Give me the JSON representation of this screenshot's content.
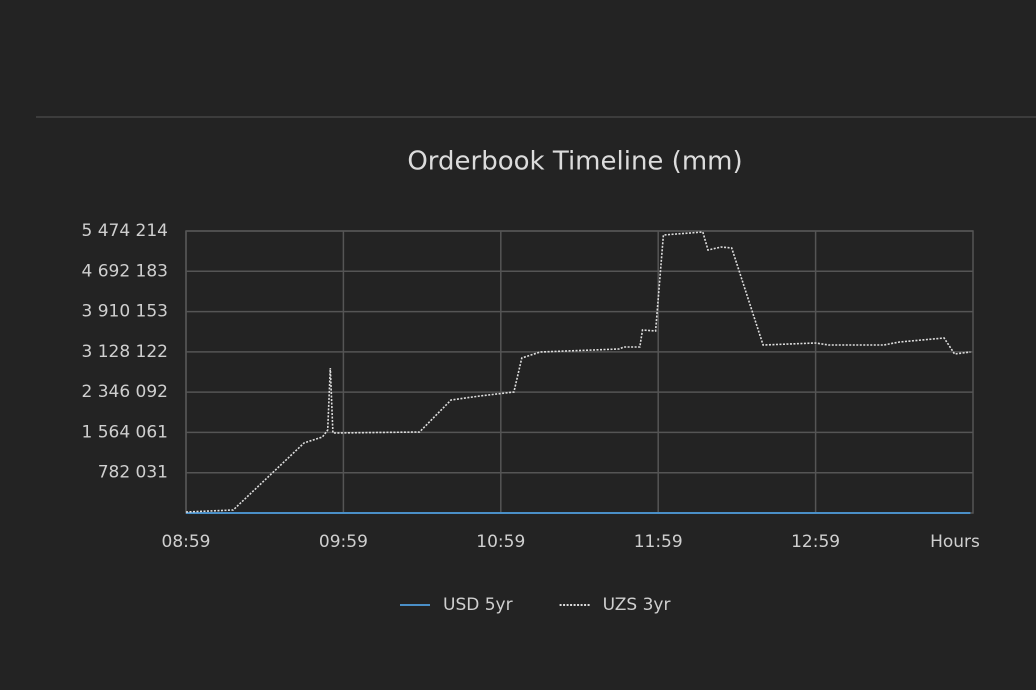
{
  "chart_data": {
    "type": "line",
    "title": "Orderbook Timeline (mm)",
    "x_label": "Hours",
    "x": [
      "08:59",
      "09:17",
      "09:44",
      "09:51",
      "09:53",
      "09:54",
      "09:55",
      "10:28",
      "10:40",
      "10:51",
      "11:04",
      "11:07",
      "11:14",
      "11:44",
      "11:46",
      "11:52",
      "11:53",
      "11:58",
      "12:01",
      "12:16",
      "12:18",
      "12:23",
      "12:27",
      "12:39",
      "12:59",
      "13:04",
      "13:25",
      "13:31",
      "13:48",
      "13:52",
      "13:58"
    ],
    "xlim": [
      "08:59",
      "13:59"
    ],
    "xticks": [
      "08:59",
      "09:59",
      "10:59",
      "11:59",
      "12:59"
    ],
    "ylim": [
      0,
      5474214
    ],
    "yticks": [
      {
        "value": 782031,
        "label": "782 031"
      },
      {
        "value": 1564061,
        "label": "1 564 061"
      },
      {
        "value": 2346092,
        "label": "2 346 092"
      },
      {
        "value": 3128122,
        "label": "3 128 122"
      },
      {
        "value": 3910153,
        "label": "3 910 153"
      },
      {
        "value": 4692183,
        "label": "4 692 183"
      },
      {
        "value": 5474214,
        "label": "5 474 214"
      }
    ],
    "grid": true,
    "series": [
      {
        "name": "USD 5yr",
        "color": "#4a8fc7",
        "style": "solid",
        "values": [
          0,
          0,
          0,
          0,
          0,
          0,
          0,
          0,
          0,
          0,
          0,
          0,
          0,
          0,
          0,
          0,
          0,
          0,
          0,
          0,
          0,
          0,
          0,
          0,
          0,
          0,
          0,
          0,
          0,
          0,
          0
        ]
      },
      {
        "name": "UZS 3yr",
        "color": "#dddddd",
        "style": "dotted",
        "values": [
          20000,
          58000,
          1360000,
          1475000,
          1611000,
          2815000,
          1553000,
          1572000,
          2193000,
          2271000,
          2349000,
          3009000,
          3125000,
          3184000,
          3222000,
          3222000,
          3552000,
          3533000,
          5397000,
          5455000,
          5105000,
          5164000,
          5144000,
          3261000,
          3300000,
          3261000,
          3261000,
          3319000,
          3397000,
          3087000,
          3125000
        ]
      }
    ]
  }
}
